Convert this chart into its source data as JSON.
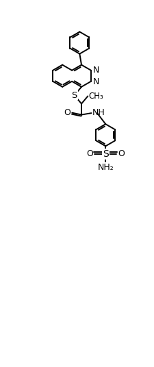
{
  "bg": "#ffffff",
  "lc": "#000000",
  "lw": 1.4,
  "fs": 9,
  "figsize": [
    2.26,
    5.36
  ],
  "dpi": 100,
  "xlim": [
    0,
    10
  ],
  "ylim": [
    0,
    24
  ]
}
